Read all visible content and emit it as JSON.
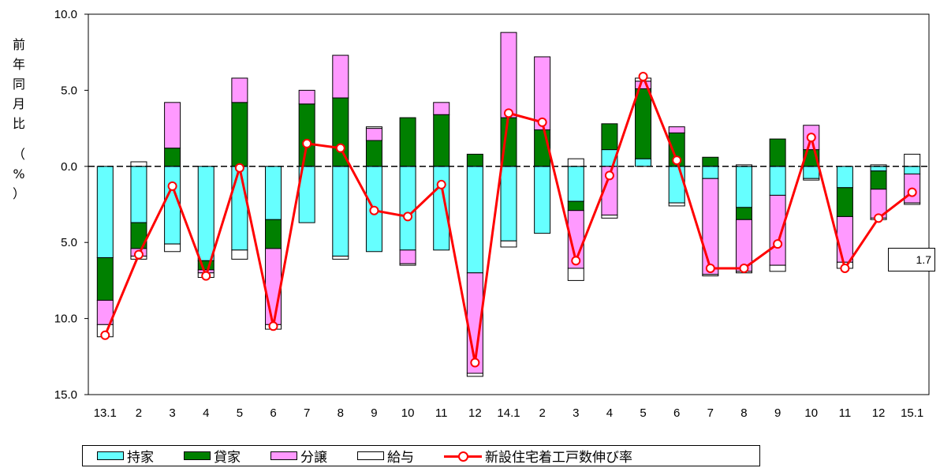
{
  "chart_data": {
    "type": "bar",
    "stacked": true,
    "ylabel": "前年同月比（%）",
    "ylim": [
      -15,
      10
    ],
    "y_ticks": [
      10,
      5,
      0,
      -5,
      -10,
      -15
    ],
    "y_tick_labels": [
      "10.0",
      "5.0",
      "0.0",
      "5.0",
      "10.0",
      "15.0"
    ],
    "categories": [
      "13.1",
      "2",
      "3",
      "4",
      "5",
      "6",
      "7",
      "8",
      "9",
      "10",
      "11",
      "12",
      "14.1",
      "2",
      "3",
      "4",
      "5",
      "6",
      "7",
      "8",
      "9",
      "10",
      "11",
      "12",
      "15.1"
    ],
    "series": [
      {
        "name": "持家",
        "color": "#66ffff",
        "values": [
          -6.0,
          -3.7,
          -5.1,
          -6.2,
          -5.5,
          -3.5,
          -3.7,
          -5.9,
          -5.6,
          -5.5,
          -5.5,
          -7.0,
          -4.9,
          -4.4,
          -2.3,
          1.1,
          0.5,
          -2.4,
          -0.8,
          -2.7,
          -1.9,
          -0.8,
          -1.4,
          -0.3,
          -0.5
        ]
      },
      {
        "name": "貸家",
        "color": "#008000",
        "values": [
          -2.8,
          -1.7,
          1.2,
          -0.6,
          4.2,
          -1.9,
          4.1,
          4.5,
          1.7,
          3.2,
          3.4,
          0.8,
          3.2,
          2.4,
          -0.6,
          1.7,
          4.6,
          2.2,
          0.6,
          -0.8,
          1.8,
          1.1,
          -1.9,
          -1.2,
          0.0
        ]
      },
      {
        "name": "分譲",
        "color": "#ff99ff",
        "values": [
          -1.6,
          -0.5,
          3.0,
          -0.2,
          1.6,
          -5.0,
          0.9,
          2.8,
          0.8,
          -0.9,
          0.8,
          -6.6,
          5.6,
          4.8,
          -3.8,
          -3.2,
          0.5,
          0.4,
          -6.3,
          -3.4,
          -4.6,
          1.6,
          -3.0,
          -1.9,
          -1.9
        ]
      },
      {
        "name": "給与",
        "color": "#ffffff",
        "values": [
          -0.8,
          -0.2,
          -0.5,
          -0.3,
          -0.6,
          -0.3,
          0.0,
          -0.2,
          0.1,
          -0.1,
          0.0,
          -0.2,
          -0.4,
          0.0,
          -0.8,
          -0.2,
          0.2,
          -0.2,
          -0.1,
          -0.1,
          -0.4,
          -0.1,
          -0.4,
          -0.1,
          -0.1
        ],
        "upper_values": [
          0,
          0.3,
          0,
          0,
          0,
          0,
          0,
          0,
          0,
          0,
          0,
          0,
          0,
          0,
          0.5,
          0,
          0,
          0,
          0,
          0.1,
          0,
          0,
          0,
          0.1,
          0.8
        ]
      }
    ],
    "line": {
      "name": "新設住宅着工戸数伸び率",
      "color": "#ff0000",
      "values": [
        -11.1,
        -5.8,
        -1.3,
        -7.2,
        -0.1,
        -10.5,
        1.5,
        1.2,
        -2.9,
        -3.3,
        -1.2,
        -12.9,
        3.5,
        2.9,
        -6.2,
        -0.6,
        5.9,
        0.4,
        -6.7,
        -6.7,
        -5.1,
        1.9,
        -6.7,
        -3.4,
        -1.7
      ]
    },
    "callout": "1.7"
  },
  "legend": {
    "items": [
      "持家",
      "貸家",
      "分譲",
      "給与",
      "新設住宅着工戸数伸び率"
    ]
  },
  "ylabel_chars": [
    "前",
    "年",
    "同",
    "月",
    "比",
    "（",
    "%",
    "）"
  ]
}
